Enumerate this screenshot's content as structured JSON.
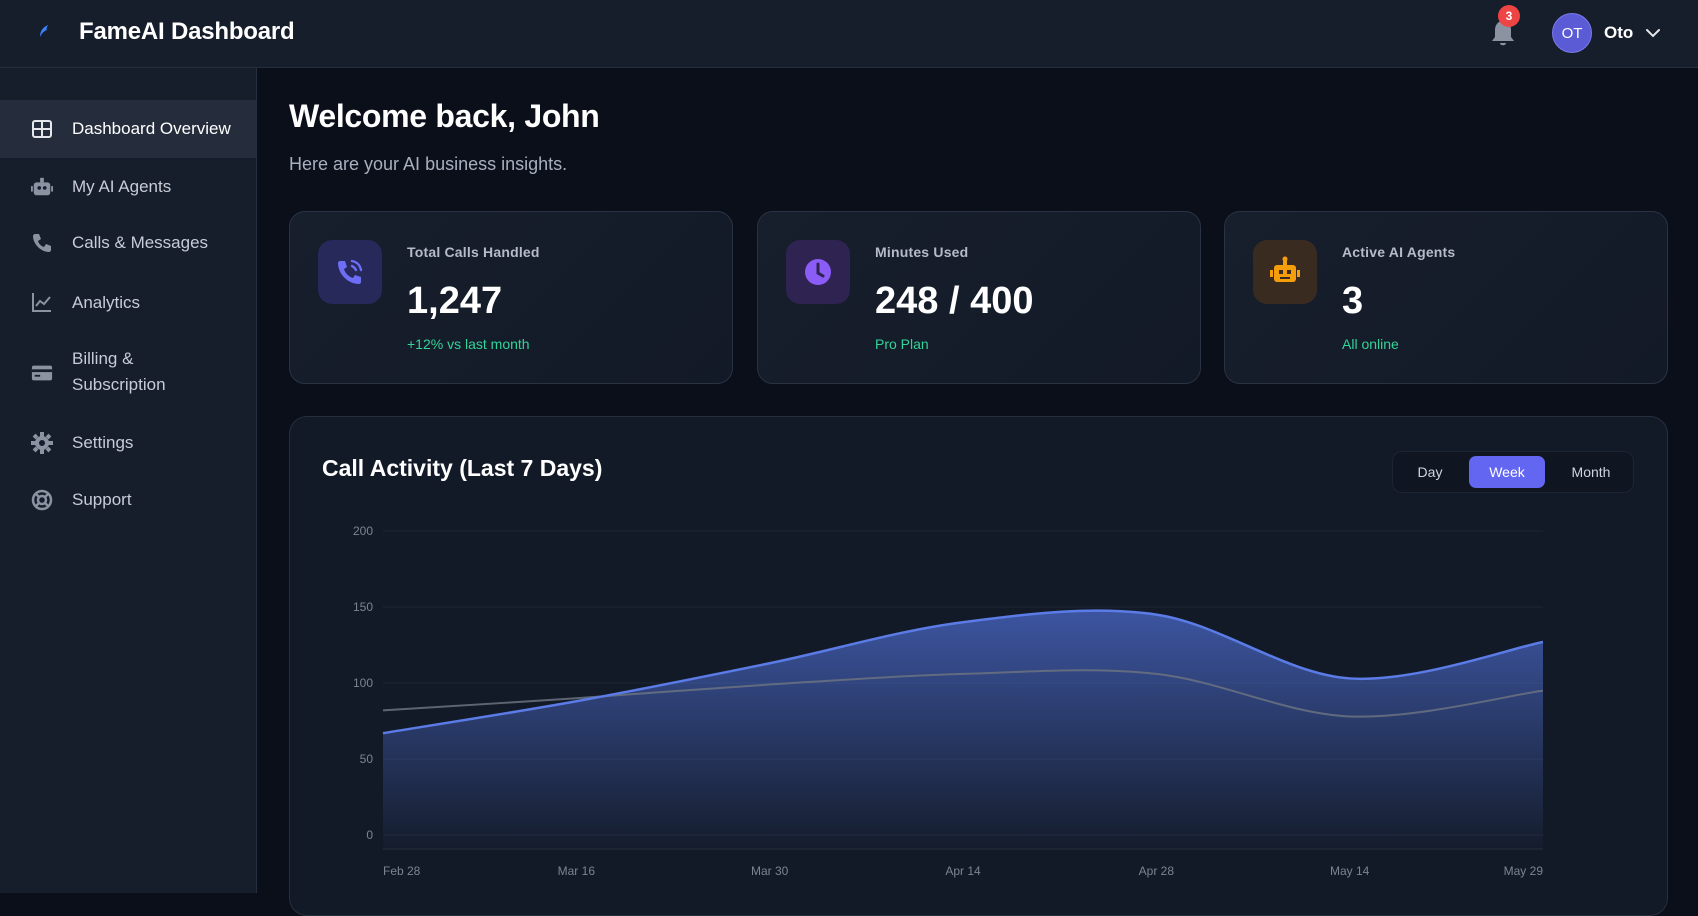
{
  "app": {
    "title": "FameAI Dashboard"
  },
  "header": {
    "notifications_count": "3",
    "avatar_initials": "OT",
    "user_name": "Oto"
  },
  "sidebar": {
    "items": [
      {
        "label": "Dashboard Overview",
        "icon": "grid-icon",
        "active": true
      },
      {
        "label": "My AI Agents",
        "icon": "robot-icon",
        "active": false
      },
      {
        "label": "Calls & Messages",
        "icon": "phone-icon",
        "active": false
      },
      {
        "label": "Analytics",
        "icon": "line-chart-icon",
        "active": false
      },
      {
        "label": "Billing &",
        "label2": "Subscription",
        "icon": "credit-card-icon",
        "active": false
      },
      {
        "label": "Settings",
        "icon": "gear-icon",
        "active": false
      },
      {
        "label": "Support",
        "icon": "lifebuoy-icon",
        "active": false
      }
    ]
  },
  "main": {
    "welcome": "Welcome back, John",
    "subtitle": "Here are your AI business insights."
  },
  "stats": [
    {
      "label": "Total Calls Handled",
      "value": "1,247",
      "note": "+12% vs last month",
      "icon": "phone-call-icon",
      "accent": "#6d6ef5"
    },
    {
      "label": "Minutes Used",
      "value": "248 / 400",
      "note": "Pro Plan",
      "icon": "clock-icon",
      "accent": "#8b5cf6"
    },
    {
      "label": "Active AI Agents",
      "value": "3",
      "note": "All online",
      "icon": "robot-icon",
      "accent": "#f59e0b"
    }
  ],
  "chart_card": {
    "title": "Call Activity (Last 7 Days)",
    "ranges": [
      "Day",
      "Week",
      "Month"
    ],
    "selected_range": "Week"
  },
  "chart_data": {
    "type": "area",
    "categories": [
      "Feb 28",
      "Mar 16",
      "Mar 30",
      "Apr 14",
      "Apr 28",
      "May 14",
      "May 29"
    ],
    "yticks": [
      0,
      50,
      100,
      150,
      200
    ],
    "ylim": [
      0,
      200
    ],
    "series": [
      {
        "values": [
          67,
          88,
          113,
          140,
          145,
          103,
          127
        ],
        "color": "#5b7ce6"
      },
      {
        "values": [
          82,
          90,
          99,
          106,
          106,
          78,
          95
        ],
        "color": "#6b7280"
      }
    ],
    "grid": true,
    "legend": "none"
  }
}
